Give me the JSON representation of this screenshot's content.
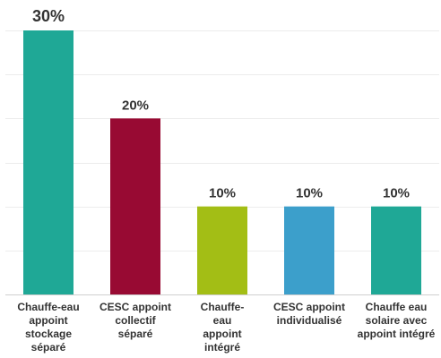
{
  "chart_data": {
    "type": "bar",
    "categories": [
      [
        "Chauffe-eau",
        "appoint",
        "stockage",
        "séparé"
      ],
      [
        "CESC appoint",
        "collectif",
        "séparé"
      ],
      [
        "Chauffe-",
        "eau",
        "appoint",
        "intégré"
      ],
      [
        "CESC appoint",
        "individualisé"
      ],
      [
        "Chauffe eau",
        "solaire avec",
        "appoint intégré"
      ]
    ],
    "values": [
      30,
      20,
      10,
      10,
      10
    ],
    "value_labels": [
      "30%",
      "20%",
      "10%",
      "10%",
      "10%"
    ],
    "colors": [
      "#1fa896",
      "#980a33",
      "#a3be15",
      "#3c9fcb",
      "#1fa896"
    ],
    "ylim": [
      0,
      30
    ],
    "grid": true,
    "title": "",
    "xlabel": "",
    "ylabel": ""
  }
}
